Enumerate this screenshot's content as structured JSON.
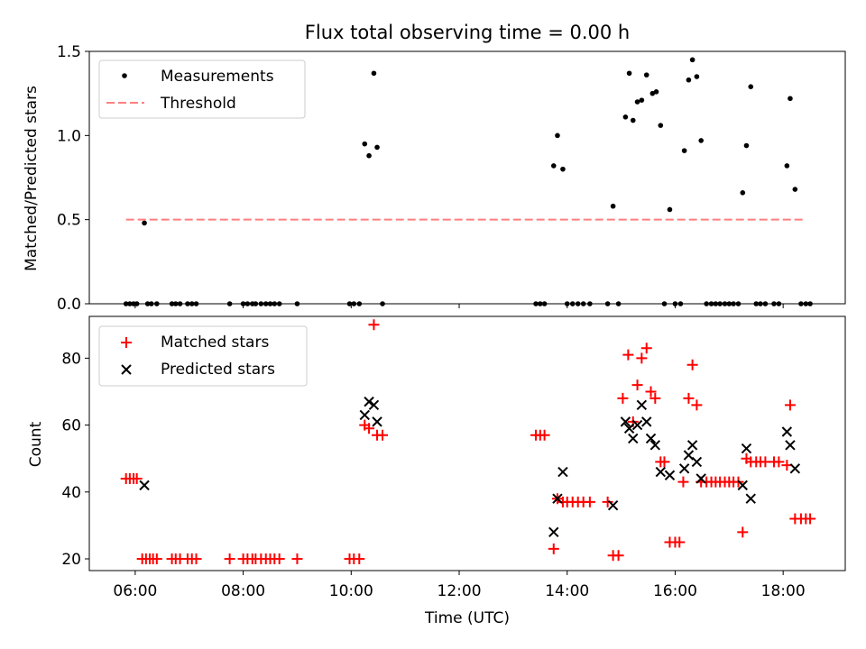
{
  "chart_data": [
    {
      "type": "scatter",
      "title": "Flux total observing time = 0.00 h",
      "xlabel": "",
      "ylabel": "Matched/Predicted stars",
      "xlim": [
        5.15,
        19.15
      ],
      "ylim": [
        0.0,
        1.5
      ],
      "x_ticks": [
        "06:00",
        "08:00",
        "10:00",
        "12:00",
        "14:00",
        "16:00",
        "18:00"
      ],
      "x_tick_values": [
        6,
        8,
        10,
        12,
        14,
        16,
        18
      ],
      "x_tick_labels_visible": false,
      "y_ticks": [
        "0.0",
        "0.5",
        "1.0",
        "1.5"
      ],
      "y_tick_values": [
        0.0,
        0.5,
        1.0,
        1.5
      ],
      "grid": false,
      "legend_position": "top-left",
      "legend": [
        "Measurements",
        "Threshold"
      ],
      "series": [
        {
          "name": "Measurements",
          "marker": "dot",
          "color": "#000000",
          "points": [
            [
              5.83,
              0
            ],
            [
              5.9,
              0
            ],
            [
              5.97,
              0
            ],
            [
              6.03,
              0
            ],
            [
              6.17,
              0.48
            ],
            [
              6.23,
              0
            ],
            [
              6.3,
              0
            ],
            [
              6.4,
              0
            ],
            [
              6.68,
              0
            ],
            [
              6.75,
              0
            ],
            [
              6.83,
              0
            ],
            [
              6.97,
              0
            ],
            [
              7.05,
              0
            ],
            [
              7.13,
              0
            ],
            [
              7.75,
              0
            ],
            [
              8.0,
              0
            ],
            [
              8.08,
              0
            ],
            [
              8.17,
              0
            ],
            [
              8.23,
              0
            ],
            [
              8.33,
              0
            ],
            [
              8.42,
              0
            ],
            [
              8.5,
              0
            ],
            [
              8.58,
              0
            ],
            [
              8.67,
              0
            ],
            [
              9.0,
              0
            ],
            [
              9.97,
              0
            ],
            [
              10.05,
              0
            ],
            [
              10.15,
              0
            ],
            [
              10.25,
              0.95
            ],
            [
              10.33,
              0.88
            ],
            [
              10.42,
              1.37
            ],
            [
              10.48,
              0.93
            ],
            [
              10.58,
              0
            ],
            [
              13.42,
              0
            ],
            [
              13.5,
              0
            ],
            [
              13.58,
              0
            ],
            [
              13.75,
              0.82
            ],
            [
              13.82,
              1.0
            ],
            [
              13.92,
              0.8
            ],
            [
              14.0,
              0
            ],
            [
              14.1,
              0
            ],
            [
              14.2,
              0
            ],
            [
              14.3,
              0
            ],
            [
              14.42,
              0
            ],
            [
              14.75,
              0
            ],
            [
              14.85,
              0.58
            ],
            [
              14.95,
              0
            ],
            [
              15.08,
              1.11
            ],
            [
              15.15,
              1.37
            ],
            [
              15.22,
              1.09
            ],
            [
              15.3,
              1.2
            ],
            [
              15.38,
              1.21
            ],
            [
              15.47,
              1.36
            ],
            [
              15.58,
              1.25
            ],
            [
              15.65,
              1.26
            ],
            [
              15.73,
              1.06
            ],
            [
              15.8,
              0
            ],
            [
              15.9,
              0.56
            ],
            [
              16.0,
              0
            ],
            [
              16.1,
              0
            ],
            [
              16.17,
              0.91
            ],
            [
              16.25,
              1.33
            ],
            [
              16.32,
              1.45
            ],
            [
              16.4,
              1.35
            ],
            [
              16.48,
              0.97
            ],
            [
              16.58,
              0
            ],
            [
              16.67,
              0
            ],
            [
              16.75,
              0
            ],
            [
              16.83,
              0
            ],
            [
              16.92,
              0
            ],
            [
              17.0,
              0
            ],
            [
              17.08,
              0
            ],
            [
              17.17,
              0
            ],
            [
              17.25,
              0.66
            ],
            [
              17.32,
              0.94
            ],
            [
              17.4,
              1.29
            ],
            [
              17.5,
              0
            ],
            [
              17.58,
              0
            ],
            [
              17.67,
              0
            ],
            [
              17.83,
              0
            ],
            [
              17.92,
              0
            ],
            [
              18.07,
              0.82
            ],
            [
              18.13,
              1.22
            ],
            [
              18.22,
              0.68
            ],
            [
              18.33,
              0
            ],
            [
              18.42,
              0
            ],
            [
              18.5,
              0
            ]
          ]
        },
        {
          "name": "Threshold",
          "style": "dashed-line",
          "color": "#ff7f7f",
          "x": [
            5.83,
            18.42
          ],
          "y": [
            0.5,
            0.5
          ]
        }
      ]
    },
    {
      "type": "scatter",
      "title": "",
      "xlabel": "Time (UTC)",
      "ylabel": "Count",
      "xlim": [
        5.15,
        19.15
      ],
      "ylim": [
        16.5,
        92.5
      ],
      "x_ticks": [
        "06:00",
        "08:00",
        "10:00",
        "12:00",
        "14:00",
        "16:00",
        "18:00"
      ],
      "x_tick_values": [
        6,
        8,
        10,
        12,
        14,
        16,
        18
      ],
      "y_ticks": [
        "20",
        "40",
        "60",
        "80"
      ],
      "y_tick_values": [
        20,
        40,
        60,
        80
      ],
      "grid": false,
      "legend_position": "top-left",
      "legend": [
        "Matched stars",
        "Predicted stars"
      ],
      "series": [
        {
          "name": "Matched stars",
          "marker": "plus",
          "color": "#ff0000",
          "points": [
            [
              5.83,
              44
            ],
            [
              5.9,
              44
            ],
            [
              5.97,
              44
            ],
            [
              6.03,
              44
            ],
            [
              6.13,
              20
            ],
            [
              6.2,
              20
            ],
            [
              6.27,
              20
            ],
            [
              6.33,
              20
            ],
            [
              6.4,
              20
            ],
            [
              6.68,
              20
            ],
            [
              6.75,
              20
            ],
            [
              6.83,
              20
            ],
            [
              6.97,
              20
            ],
            [
              7.05,
              20
            ],
            [
              7.13,
              20
            ],
            [
              7.75,
              20
            ],
            [
              8.0,
              20
            ],
            [
              8.08,
              20
            ],
            [
              8.17,
              20
            ],
            [
              8.23,
              20
            ],
            [
              8.33,
              20
            ],
            [
              8.42,
              20
            ],
            [
              8.5,
              20
            ],
            [
              8.58,
              20
            ],
            [
              8.67,
              20
            ],
            [
              9.0,
              20
            ],
            [
              9.97,
              20
            ],
            [
              10.05,
              20
            ],
            [
              10.15,
              20
            ],
            [
              10.25,
              60
            ],
            [
              10.33,
              59
            ],
            [
              10.42,
              90
            ],
            [
              10.48,
              57
            ],
            [
              10.58,
              57
            ],
            [
              13.42,
              57
            ],
            [
              13.5,
              57
            ],
            [
              13.58,
              57
            ],
            [
              13.75,
              23
            ],
            [
              13.82,
              38
            ],
            [
              13.92,
              37
            ],
            [
              14.0,
              37
            ],
            [
              14.1,
              37
            ],
            [
              14.2,
              37
            ],
            [
              14.3,
              37
            ],
            [
              14.42,
              37
            ],
            [
              14.75,
              37
            ],
            [
              14.85,
              21
            ],
            [
              14.95,
              21
            ],
            [
              15.03,
              68
            ],
            [
              15.13,
              81
            ],
            [
              15.22,
              61
            ],
            [
              15.3,
              72
            ],
            [
              15.38,
              80
            ],
            [
              15.47,
              83
            ],
            [
              15.55,
              70
            ],
            [
              15.63,
              68
            ],
            [
              15.73,
              49
            ],
            [
              15.8,
              49
            ],
            [
              15.9,
              25
            ],
            [
              16.0,
              25
            ],
            [
              16.08,
              25
            ],
            [
              16.15,
              43
            ],
            [
              16.25,
              68
            ],
            [
              16.32,
              78
            ],
            [
              16.4,
              66
            ],
            [
              16.48,
              43
            ],
            [
              16.58,
              43
            ],
            [
              16.67,
              43
            ],
            [
              16.75,
              43
            ],
            [
              16.83,
              43
            ],
            [
              16.92,
              43
            ],
            [
              17.0,
              43
            ],
            [
              17.08,
              43
            ],
            [
              17.17,
              43
            ],
            [
              17.25,
              28
            ],
            [
              17.32,
              50
            ],
            [
              17.4,
              49
            ],
            [
              17.5,
              49
            ],
            [
              17.58,
              49
            ],
            [
              17.67,
              49
            ],
            [
              17.83,
              49
            ],
            [
              17.92,
              49
            ],
            [
              18.07,
              48
            ],
            [
              18.13,
              66
            ],
            [
              18.22,
              32
            ],
            [
              18.33,
              32
            ],
            [
              18.42,
              32
            ],
            [
              18.5,
              32
            ]
          ]
        },
        {
          "name": "Predicted stars",
          "marker": "x",
          "color": "#000000",
          "points": [
            [
              6.17,
              42
            ],
            [
              10.25,
              63
            ],
            [
              10.33,
              67
            ],
            [
              10.42,
              66
            ],
            [
              10.48,
              61
            ],
            [
              13.75,
              28
            ],
            [
              13.82,
              38
            ],
            [
              13.92,
              46
            ],
            [
              14.85,
              36
            ],
            [
              15.08,
              61
            ],
            [
              15.15,
              59
            ],
            [
              15.22,
              56
            ],
            [
              15.3,
              60
            ],
            [
              15.38,
              66
            ],
            [
              15.47,
              61
            ],
            [
              15.55,
              56
            ],
            [
              15.63,
              54
            ],
            [
              15.73,
              46
            ],
            [
              15.9,
              45
            ],
            [
              16.17,
              47
            ],
            [
              16.25,
              51
            ],
            [
              16.32,
              54
            ],
            [
              16.4,
              49
            ],
            [
              16.48,
              44
            ],
            [
              17.25,
              42
            ],
            [
              17.32,
              53
            ],
            [
              17.4,
              38
            ],
            [
              18.07,
              58
            ],
            [
              18.13,
              54
            ],
            [
              18.22,
              47
            ]
          ]
        }
      ]
    }
  ]
}
